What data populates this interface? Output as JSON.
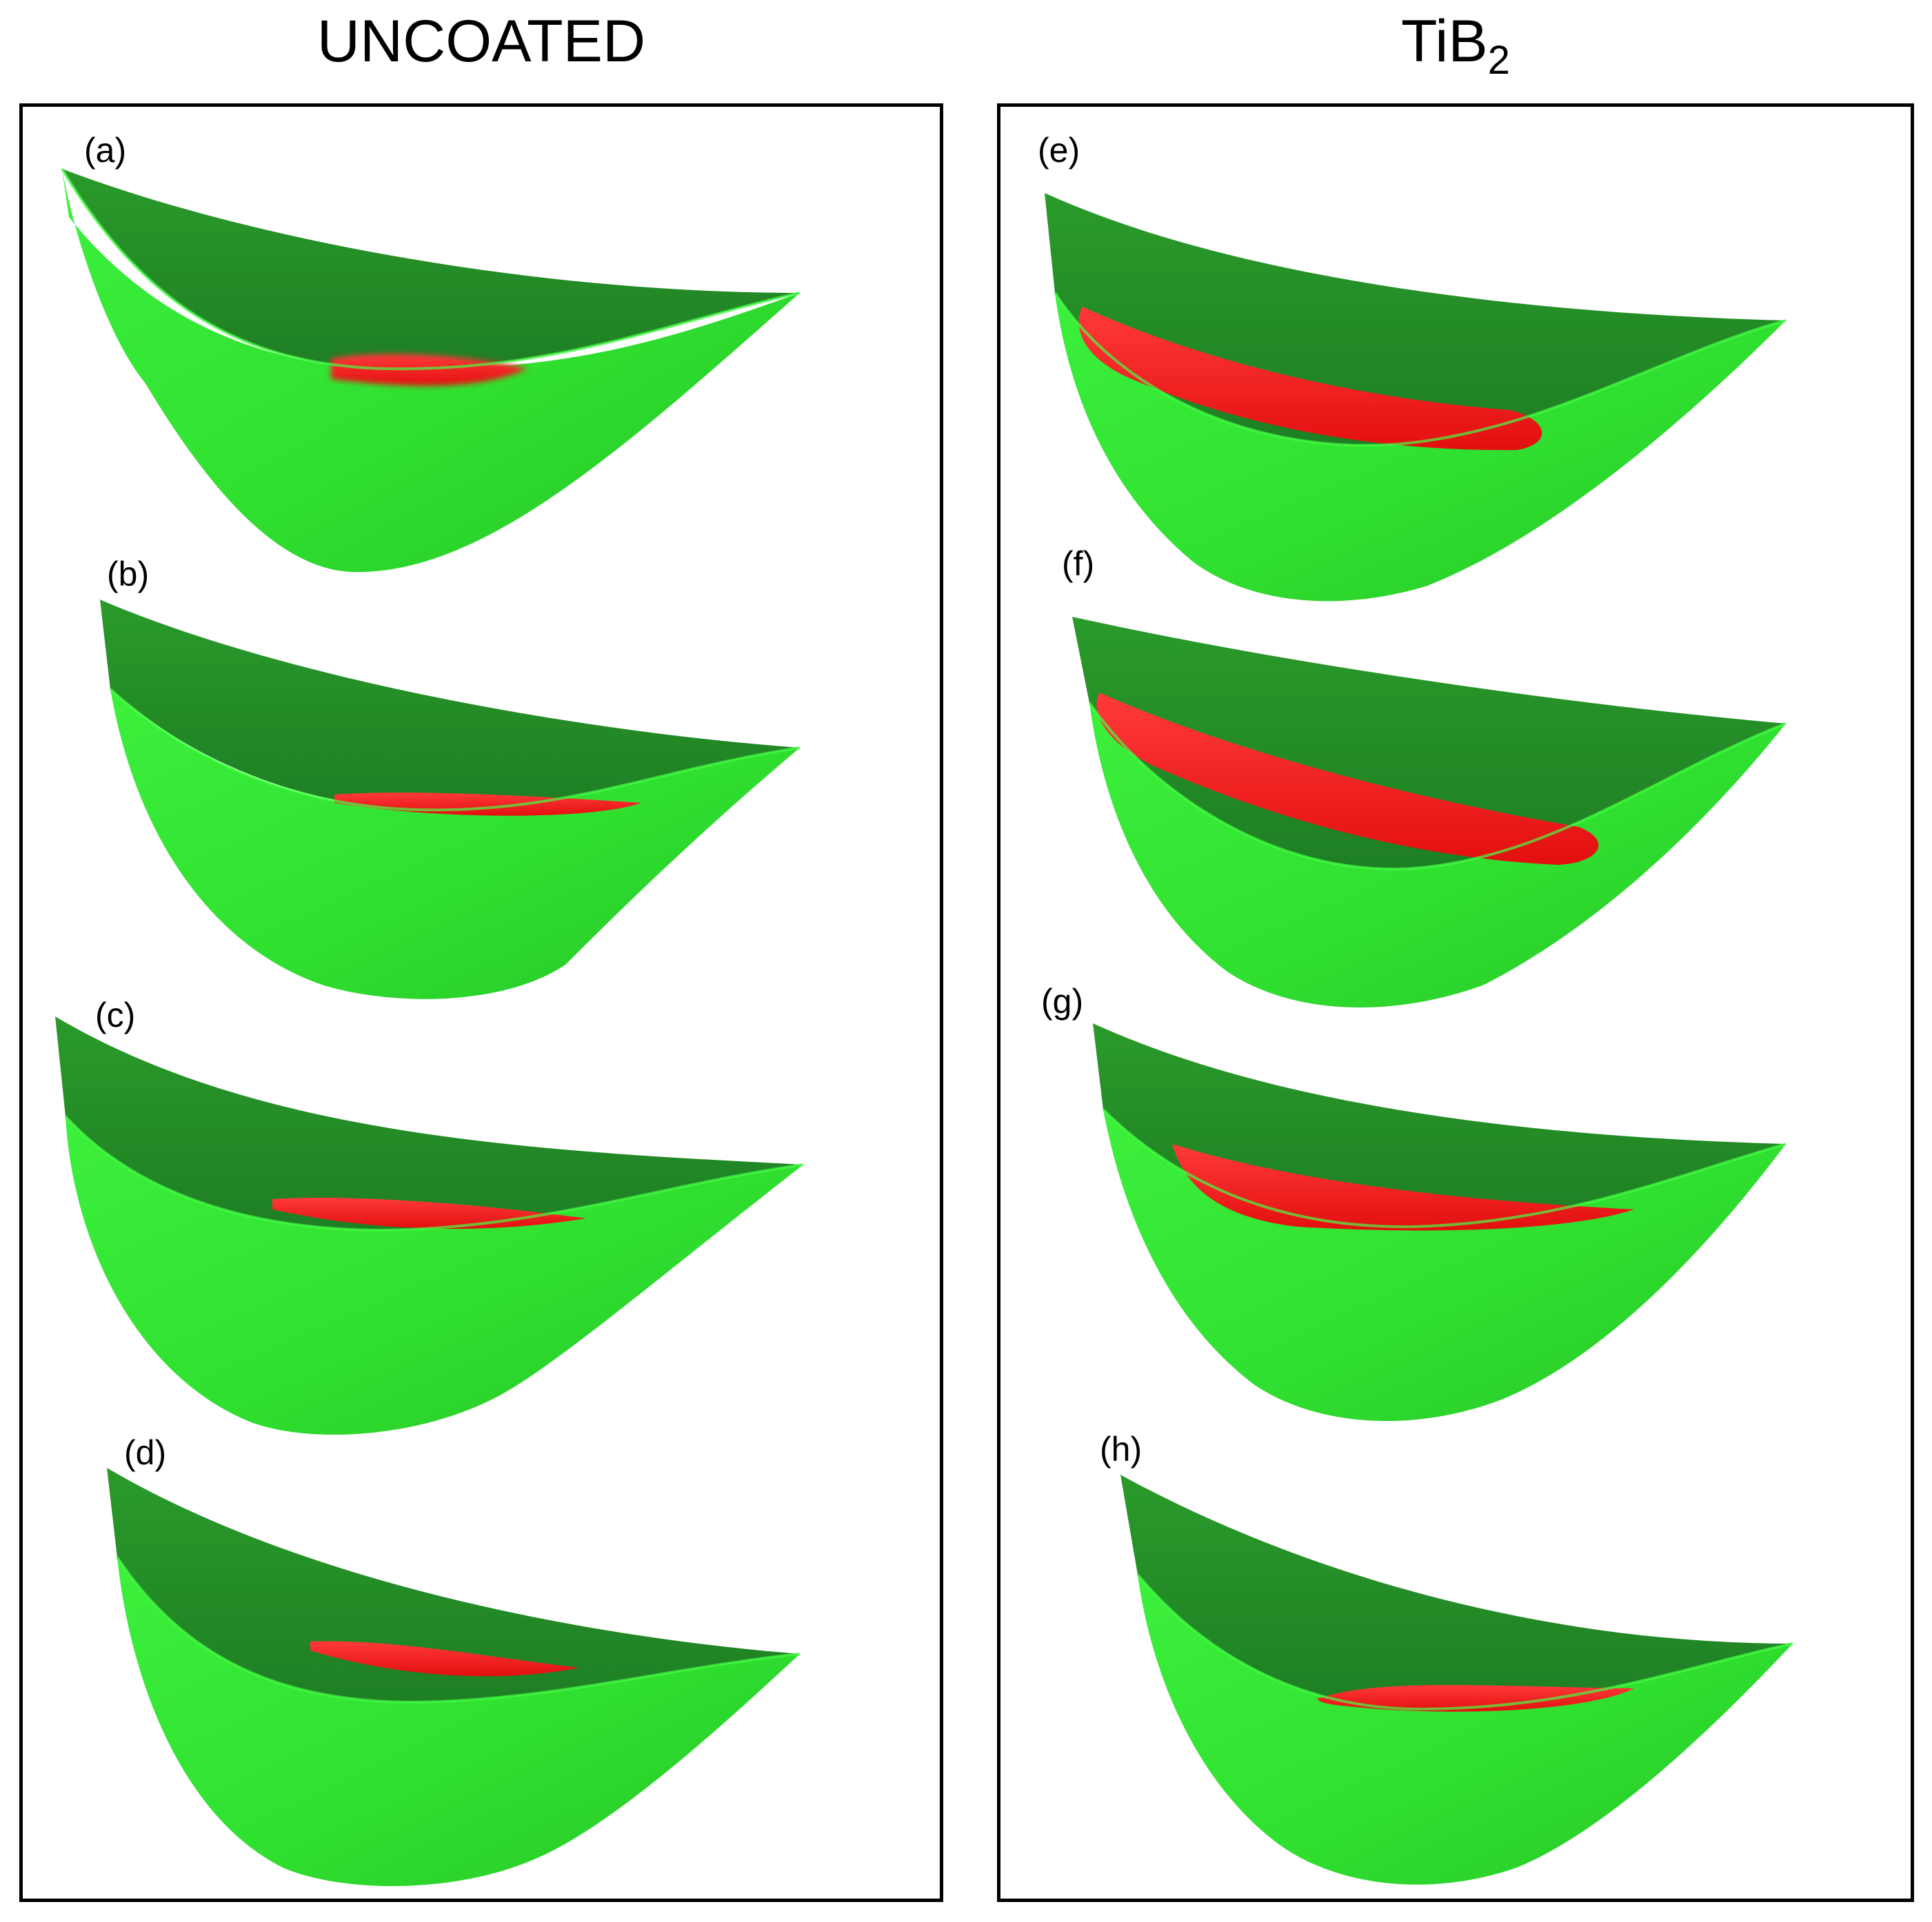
{
  "columns": {
    "left": {
      "title": "UNCOATED"
    },
    "right": {
      "title_main": "TiB",
      "title_sub": "2"
    }
  },
  "panels": [
    {
      "label": "(a)",
      "column": "UNCOATED"
    },
    {
      "label": "(b)",
      "column": "UNCOATED"
    },
    {
      "label": "(c)",
      "column": "UNCOATED"
    },
    {
      "label": "(d)",
      "column": "UNCOATED"
    },
    {
      "label": "(e)",
      "column": "TiB2"
    },
    {
      "label": "(f)",
      "column": "TiB2"
    },
    {
      "label": "(g)",
      "column": "TiB2"
    },
    {
      "label": "(h)",
      "column": "TiB2"
    }
  ],
  "colors": {
    "surface_green": "#2ee62e",
    "surface_green_dark": "#1f8a22",
    "wear_red": "#ff1a1a",
    "frame": "#000000",
    "background": "#ffffff"
  }
}
